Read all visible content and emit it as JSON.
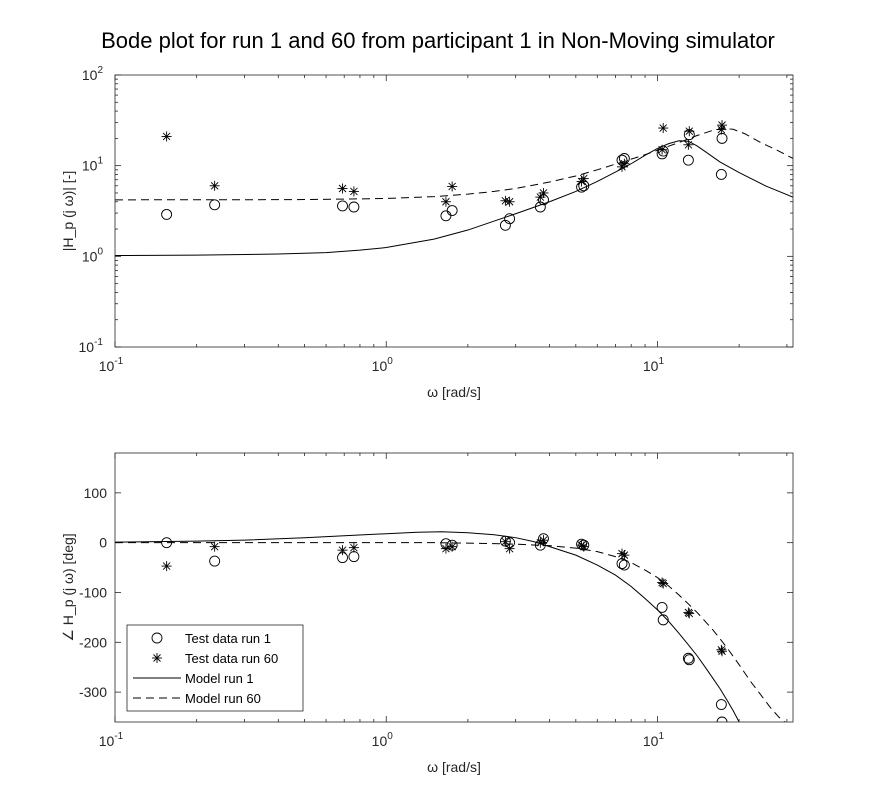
{
  "figure": {
    "title": "Bode plot for run 1 and 60 from participant 1 in Non-Moving simulator"
  },
  "chart_data": [
    {
      "type": "scatter",
      "panel": "magnitude",
      "title": "Bode plot for run 1 and 60 from participant 1 in Non-Moving simulator",
      "xlabel": "ω [rad/s]",
      "ylabel": "|H_p (j ω)| [-]",
      "xscale": "log",
      "yscale": "log",
      "xlim": [
        0.1,
        31.6
      ],
      "ylim": [
        0.1,
        100
      ],
      "xticks": [
        {
          "value": 0.1,
          "base": "10",
          "exp": "-1"
        },
        {
          "value": 1,
          "base": "10",
          "exp": "0"
        },
        {
          "value": 10,
          "base": "10",
          "exp": "1"
        }
      ],
      "yticks": [
        {
          "value": 0.1,
          "base": "10",
          "exp": "-1"
        },
        {
          "value": 1,
          "base": "10",
          "exp": "0"
        },
        {
          "value": 10,
          "base": "10",
          "exp": "1"
        },
        {
          "value": 100,
          "base": "10",
          "exp": "2"
        }
      ],
      "grid": false,
      "series": [
        {
          "name": "Test data run 1",
          "kind": "marker-circle",
          "points": [
            [
              0.155,
              2.9
            ],
            [
              0.233,
              3.7
            ],
            [
              0.69,
              3.6
            ],
            [
              0.76,
              3.5
            ],
            [
              1.66,
              2.8
            ],
            [
              1.75,
              3.2
            ],
            [
              2.75,
              2.2
            ],
            [
              2.85,
              2.6
            ],
            [
              3.7,
              3.5
            ],
            [
              3.8,
              4.2
            ],
            [
              5.25,
              5.8
            ],
            [
              5.35,
              6.0
            ],
            [
              7.4,
              11.5
            ],
            [
              7.55,
              12.0
            ],
            [
              10.4,
              13.5
            ],
            [
              10.5,
              14.5
            ],
            [
              13.0,
              11.5
            ],
            [
              13.1,
              22.0
            ],
            [
              17.2,
              8.0
            ],
            [
              17.3,
              20.0
            ]
          ]
        },
        {
          "name": "Test data run 60",
          "kind": "marker-asterisk",
          "points": [
            [
              0.155,
              21.0
            ],
            [
              0.233,
              6.0
            ],
            [
              0.69,
              5.6
            ],
            [
              0.76,
              5.2
            ],
            [
              1.66,
              4.0
            ],
            [
              1.75,
              5.9
            ],
            [
              2.75,
              4.1
            ],
            [
              2.85,
              4.0
            ],
            [
              3.7,
              4.5
            ],
            [
              3.8,
              5.0
            ],
            [
              5.25,
              6.7
            ],
            [
              5.35,
              7.2
            ],
            [
              7.4,
              9.7
            ],
            [
              7.55,
              10.5
            ],
            [
              10.4,
              15.0
            ],
            [
              10.5,
              26.0
            ],
            [
              13.0,
              17.0
            ],
            [
              13.1,
              24.0
            ],
            [
              17.2,
              25.0
            ],
            [
              17.3,
              28.0
            ]
          ]
        },
        {
          "name": "Model run 1",
          "kind": "line-solid",
          "points": [
            [
              0.1,
              1.02
            ],
            [
              0.2,
              1.03
            ],
            [
              0.4,
              1.06
            ],
            [
              0.6,
              1.1
            ],
            [
              0.8,
              1.17
            ],
            [
              1.0,
              1.25
            ],
            [
              1.5,
              1.55
            ],
            [
              2.0,
              1.95
            ],
            [
              2.5,
              2.45
            ],
            [
              3.0,
              2.95
            ],
            [
              4.0,
              4.0
            ],
            [
              5.0,
              5.2
            ],
            [
              6.0,
              6.7
            ],
            [
              7.0,
              8.5
            ],
            [
              8.0,
              10.5
            ],
            [
              9.0,
              13.0
            ],
            [
              10.0,
              15.5
            ],
            [
              11.0,
              17.5
            ],
            [
              12.0,
              18.8
            ],
            [
              13.0,
              18.6
            ],
            [
              14.0,
              16.5
            ],
            [
              15.0,
              14.3
            ],
            [
              17.0,
              11.0
            ],
            [
              20.0,
              8.4
            ],
            [
              25.0,
              6.0
            ],
            [
              31.6,
              4.5
            ]
          ]
        },
        {
          "name": "Model run 60",
          "kind": "line-dashed",
          "points": [
            [
              0.1,
              4.2
            ],
            [
              0.3,
              4.21
            ],
            [
              0.5,
              4.23
            ],
            [
              0.8,
              4.3
            ],
            [
              1.0,
              4.35
            ],
            [
              1.5,
              4.55
            ],
            [
              2.0,
              4.85
            ],
            [
              2.5,
              5.2
            ],
            [
              3.0,
              5.6
            ],
            [
              4.0,
              6.6
            ],
            [
              5.0,
              7.7
            ],
            [
              6.0,
              9.0
            ],
            [
              7.0,
              10.4
            ],
            [
              8.0,
              11.8
            ],
            [
              9.0,
              13.2
            ],
            [
              10.0,
              14.8
            ],
            [
              12.0,
              18.0
            ],
            [
              14.0,
              21.5
            ],
            [
              16.0,
              24.5
            ],
            [
              17.5,
              25.8
            ],
            [
              19.0,
              25.2
            ],
            [
              21.0,
              22.5
            ],
            [
              24.0,
              18.0
            ],
            [
              28.0,
              14.5
            ],
            [
              31.6,
              12.0
            ]
          ]
        }
      ]
    },
    {
      "type": "scatter",
      "panel": "phase",
      "xlabel": "ω [rad/s]",
      "ylabel": "∠ H_p (j ω) [deg]",
      "xscale": "log",
      "yscale": "linear",
      "xlim": [
        0.1,
        31.6
      ],
      "ylim": [
        -360,
        180
      ],
      "xticks": [
        {
          "value": 0.1,
          "base": "10",
          "exp": "-1"
        },
        {
          "value": 1,
          "base": "10",
          "exp": "0"
        },
        {
          "value": 10,
          "base": "10",
          "exp": "1"
        }
      ],
      "yticks": [
        {
          "value": 100,
          "label": "100"
        },
        {
          "value": 0,
          "label": "0"
        },
        {
          "value": -100,
          "label": "-100"
        },
        {
          "value": -200,
          "label": "-200"
        },
        {
          "value": -300,
          "label": "-300"
        }
      ],
      "grid": false,
      "legend_position": "bottom-left",
      "series": [
        {
          "name": "Test data run 1",
          "kind": "marker-circle",
          "points": [
            [
              0.155,
              0
            ],
            [
              0.233,
              -37
            ],
            [
              0.69,
              -30
            ],
            [
              0.76,
              -28
            ],
            [
              1.66,
              -2
            ],
            [
              1.75,
              -5
            ],
            [
              2.75,
              3
            ],
            [
              2.85,
              0
            ],
            [
              3.7,
              -5
            ],
            [
              3.8,
              8
            ],
            [
              5.25,
              -3
            ],
            [
              5.35,
              -5
            ],
            [
              7.4,
              -42
            ],
            [
              7.55,
              -45
            ],
            [
              10.4,
              -130
            ],
            [
              10.5,
              -155
            ],
            [
              13.0,
              -232
            ],
            [
              13.1,
              -235
            ],
            [
              17.2,
              -325
            ],
            [
              17.3,
              -360
            ]
          ]
        },
        {
          "name": "Test data run 60",
          "kind": "marker-asterisk",
          "points": [
            [
              0.155,
              -47
            ],
            [
              0.233,
              -8
            ],
            [
              0.69,
              -15
            ],
            [
              0.76,
              -10
            ],
            [
              1.66,
              -12
            ],
            [
              1.75,
              -8
            ],
            [
              2.75,
              2
            ],
            [
              2.85,
              -12
            ],
            [
              3.7,
              0
            ],
            [
              3.8,
              5
            ],
            [
              5.25,
              -5
            ],
            [
              5.35,
              -8
            ],
            [
              7.4,
              -22
            ],
            [
              7.55,
              -25
            ],
            [
              10.4,
              -80
            ],
            [
              10.5,
              -82
            ],
            [
              13.0,
              -140
            ],
            [
              13.1,
              -142
            ],
            [
              17.2,
              -215
            ],
            [
              17.3,
              -218
            ]
          ]
        },
        {
          "name": "Model run 1",
          "kind": "line-solid",
          "points": [
            [
              0.1,
              1
            ],
            [
              0.2,
              3
            ],
            [
              0.3,
              5
            ],
            [
              0.5,
              10
            ],
            [
              0.7,
              14
            ],
            [
              1.0,
              18
            ],
            [
              1.3,
              21
            ],
            [
              1.6,
              22
            ],
            [
              2.0,
              20
            ],
            [
              2.5,
              16
            ],
            [
              3.0,
              10
            ],
            [
              3.5,
              2
            ],
            [
              4.0,
              -8
            ],
            [
              5.0,
              -25
            ],
            [
              6.0,
              -45
            ],
            [
              7.0,
              -65
            ],
            [
              8.0,
              -88
            ],
            [
              9.0,
              -112
            ],
            [
              10.0,
              -135
            ],
            [
              11.0,
              -158
            ],
            [
              12.0,
              -182
            ],
            [
              13.0,
              -205
            ],
            [
              14.0,
              -227
            ],
            [
              15.0,
              -250
            ],
            [
              16.0,
              -272
            ],
            [
              17.0,
              -293
            ],
            [
              18.0,
              -315
            ],
            [
              19.0,
              -337
            ],
            [
              20.0,
              -360
            ]
          ]
        },
        {
          "name": "Model run 60",
          "kind": "line-dashed",
          "points": [
            [
              0.1,
              0
            ],
            [
              0.3,
              0
            ],
            [
              0.6,
              0
            ],
            [
              1.0,
              0
            ],
            [
              1.5,
              0
            ],
            [
              2.0,
              -1
            ],
            [
              2.5,
              -2
            ],
            [
              3.0,
              -3
            ],
            [
              4.0,
              -6
            ],
            [
              5.0,
              -11
            ],
            [
              6.0,
              -18
            ],
            [
              7.0,
              -28
            ],
            [
              8.0,
              -40
            ],
            [
              9.0,
              -55
            ],
            [
              10.0,
              -70
            ],
            [
              11.0,
              -87
            ],
            [
              12.0,
              -105
            ],
            [
              13.0,
              -123
            ],
            [
              14.0,
              -140
            ],
            [
              16.0,
              -175
            ],
            [
              18.0,
              -210
            ],
            [
              20.0,
              -245
            ],
            [
              22.0,
              -278
            ],
            [
              24.0,
              -305
            ],
            [
              26.0,
              -330
            ],
            [
              28.0,
              -350
            ],
            [
              29.5,
              -360
            ]
          ]
        }
      ]
    }
  ]
}
